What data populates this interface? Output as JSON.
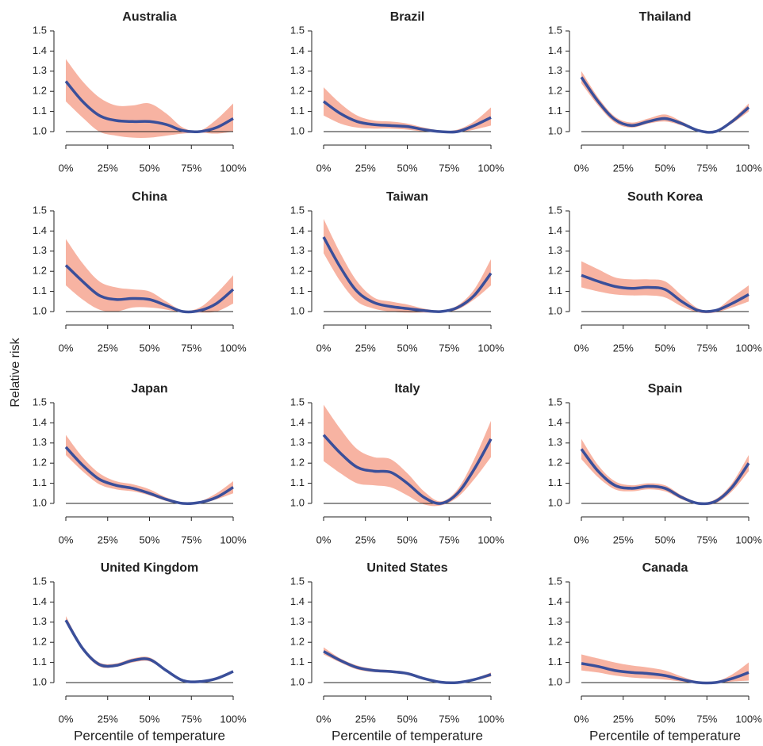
{
  "ylabel": "Relative risk",
  "chart_data": [
    {
      "type": "line",
      "title": "Australia",
      "x": [
        0,
        10,
        20,
        30,
        40,
        50,
        60,
        70,
        80,
        90,
        100
      ],
      "values": [
        1.25,
        1.15,
        1.08,
        1.055,
        1.05,
        1.05,
        1.035,
        1.005,
        1.0,
        1.02,
        1.065
      ],
      "lower": [
        1.15,
        1.07,
        1.0,
        0.98,
        0.97,
        0.97,
        0.98,
        0.99,
        0.995,
        0.99,
        1.0
      ],
      "upper": [
        1.36,
        1.25,
        1.17,
        1.13,
        1.13,
        1.14,
        1.09,
        1.02,
        1.005,
        1.06,
        1.14
      ],
      "color": "#3a4f9a",
      "band_color": "#f7b3a2",
      "xlim": [
        0,
        100
      ],
      "ylim": [
        1,
        1.5
      ],
      "xticks": [
        {
          "value": 0,
          "label": "0%"
        },
        {
          "value": 25,
          "label": "25%"
        },
        {
          "value": 50,
          "label": "50%"
        },
        {
          "value": 75,
          "label": "75%"
        },
        {
          "value": 100,
          "label": "100%"
        }
      ],
      "yticks": [
        {
          "value": 1,
          "label": "1.0"
        },
        1.1,
        1.2,
        1.3,
        1.4,
        1.5
      ]
    },
    {
      "type": "line",
      "title": "Brazil",
      "x": [
        0,
        10,
        20,
        30,
        40,
        50,
        60,
        70,
        80,
        90,
        100
      ],
      "values": [
        1.15,
        1.09,
        1.05,
        1.035,
        1.03,
        1.025,
        1.01,
        1.0,
        1.0,
        1.03,
        1.07
      ],
      "lower": [
        1.08,
        1.04,
        1.02,
        1.015,
        1.015,
        1.01,
        1.0,
        0.995,
        0.995,
        1.01,
        1.03
      ],
      "upper": [
        1.22,
        1.14,
        1.08,
        1.055,
        1.05,
        1.04,
        1.02,
        1.005,
        1.01,
        1.05,
        1.12
      ],
      "color": "#3a4f9a",
      "band_color": "#f7b3a2",
      "xlim": [
        0,
        100
      ],
      "ylim": [
        1,
        1.5
      ],
      "xticks": [
        {
          "value": 0,
          "label": "0%"
        },
        {
          "value": 25,
          "label": "25%"
        },
        {
          "value": 50,
          "label": "50%"
        },
        {
          "value": 75,
          "label": "75%"
        },
        {
          "value": 100,
          "label": "100%"
        }
      ],
      "yticks": [
        {
          "value": 1,
          "label": "1.0"
        },
        1.1,
        1.2,
        1.3,
        1.4,
        1.5
      ]
    },
    {
      "type": "line",
      "title": "Thailand",
      "x": [
        0,
        10,
        20,
        30,
        40,
        50,
        60,
        70,
        80,
        90,
        100
      ],
      "values": [
        1.27,
        1.15,
        1.06,
        1.03,
        1.05,
        1.065,
        1.04,
        1.005,
        1.0,
        1.05,
        1.12
      ],
      "lower": [
        1.24,
        1.13,
        1.045,
        1.02,
        1.04,
        1.05,
        1.03,
        1.0,
        0.995,
        1.04,
        1.1
      ],
      "upper": [
        1.3,
        1.17,
        1.075,
        1.045,
        1.065,
        1.085,
        1.05,
        1.01,
        1.005,
        1.06,
        1.14
      ],
      "color": "#3a4f9a",
      "band_color": "#f7b3a2",
      "xlim": [
        0,
        100
      ],
      "ylim": [
        1,
        1.5
      ],
      "xticks": [
        {
          "value": 0,
          "label": "0%"
        },
        {
          "value": 25,
          "label": "25%"
        },
        {
          "value": 50,
          "label": "50%"
        },
        {
          "value": 75,
          "label": "75%"
        },
        {
          "value": 100,
          "label": "100%"
        }
      ],
      "yticks": [
        {
          "value": 1,
          "label": "1.0"
        },
        1.1,
        1.2,
        1.3,
        1.4,
        1.5
      ]
    },
    {
      "type": "line",
      "title": "China",
      "x": [
        0,
        10,
        20,
        30,
        40,
        50,
        60,
        70,
        80,
        90,
        100
      ],
      "values": [
        1.23,
        1.15,
        1.08,
        1.06,
        1.065,
        1.06,
        1.03,
        1.0,
        1.005,
        1.04,
        1.11
      ],
      "lower": [
        1.13,
        1.06,
        1.01,
        1.0,
        1.02,
        1.02,
        1.01,
        0.995,
        0.995,
        1.0,
        1.04
      ],
      "upper": [
        1.36,
        1.24,
        1.15,
        1.12,
        1.11,
        1.1,
        1.05,
        1.005,
        1.02,
        1.09,
        1.18
      ],
      "color": "#3a4f9a",
      "band_color": "#f7b3a2",
      "xlim": [
        0,
        100
      ],
      "ylim": [
        1,
        1.5
      ],
      "xticks": [
        {
          "value": 0,
          "label": "0%"
        },
        {
          "value": 25,
          "label": "25%"
        },
        {
          "value": 50,
          "label": "50%"
        },
        {
          "value": 75,
          "label": "75%"
        },
        {
          "value": 100,
          "label": "100%"
        }
      ],
      "yticks": [
        {
          "value": 1,
          "label": "1.0"
        },
        1.1,
        1.2,
        1.3,
        1.4,
        1.5
      ]
    },
    {
      "type": "line",
      "title": "Taiwan",
      "x": [
        0,
        10,
        20,
        30,
        40,
        50,
        60,
        70,
        80,
        90,
        100
      ],
      "values": [
        1.37,
        1.22,
        1.1,
        1.045,
        1.025,
        1.015,
        1.005,
        1.0,
        1.02,
        1.08,
        1.19
      ],
      "lower": [
        1.29,
        1.15,
        1.05,
        1.015,
        1.0,
        0.995,
        0.995,
        0.995,
        1.01,
        1.06,
        1.13
      ],
      "upper": [
        1.46,
        1.29,
        1.15,
        1.07,
        1.05,
        1.035,
        1.015,
        1.005,
        1.03,
        1.11,
        1.26
      ],
      "color": "#3a4f9a",
      "band_color": "#f7b3a2",
      "xlim": [
        0,
        100
      ],
      "ylim": [
        1,
        1.5
      ],
      "xticks": [
        {
          "value": 0,
          "label": "0%"
        },
        {
          "value": 25,
          "label": "25%"
        },
        {
          "value": 50,
          "label": "50%"
        },
        {
          "value": 75,
          "label": "75%"
        },
        {
          "value": 100,
          "label": "100%"
        }
      ],
      "yticks": [
        {
          "value": 1,
          "label": "1.0"
        },
        1.1,
        1.2,
        1.3,
        1.4,
        1.5
      ]
    },
    {
      "type": "line",
      "title": "South Korea",
      "x": [
        0,
        10,
        20,
        30,
        40,
        50,
        60,
        70,
        80,
        90,
        100
      ],
      "values": [
        1.18,
        1.15,
        1.125,
        1.115,
        1.12,
        1.11,
        1.05,
        1.005,
        1.005,
        1.04,
        1.085
      ],
      "lower": [
        1.12,
        1.1,
        1.085,
        1.08,
        1.08,
        1.07,
        1.025,
        0.995,
        0.995,
        1.02,
        1.05
      ],
      "upper": [
        1.25,
        1.21,
        1.17,
        1.16,
        1.16,
        1.15,
        1.08,
        1.015,
        1.01,
        1.07,
        1.13
      ],
      "color": "#3a4f9a",
      "band_color": "#f7b3a2",
      "xlim": [
        0,
        100
      ],
      "ylim": [
        1,
        1.5
      ],
      "xticks": [
        {
          "value": 0,
          "label": "0%"
        },
        {
          "value": 25,
          "label": "25%"
        },
        {
          "value": 50,
          "label": "50%"
        },
        {
          "value": 75,
          "label": "75%"
        },
        {
          "value": 100,
          "label": "100%"
        }
      ],
      "yticks": [
        {
          "value": 1,
          "label": "1.0"
        },
        1.1,
        1.2,
        1.3,
        1.4,
        1.5
      ]
    },
    {
      "type": "line",
      "title": "Japan",
      "x": [
        0,
        10,
        20,
        30,
        40,
        50,
        60,
        70,
        80,
        90,
        100
      ],
      "values": [
        1.28,
        1.19,
        1.12,
        1.09,
        1.075,
        1.05,
        1.02,
        1.0,
        1.005,
        1.03,
        1.08
      ],
      "lower": [
        1.24,
        1.16,
        1.095,
        1.07,
        1.06,
        1.04,
        1.012,
        0.995,
        0.998,
        1.02,
        1.05
      ],
      "upper": [
        1.34,
        1.23,
        1.15,
        1.11,
        1.095,
        1.07,
        1.03,
        1.005,
        1.01,
        1.05,
        1.11
      ],
      "color": "#3a4f9a",
      "band_color": "#f7b3a2",
      "xlim": [
        0,
        100
      ],
      "ylim": [
        1,
        1.5
      ],
      "xticks": [
        {
          "value": 0,
          "label": "0%"
        },
        {
          "value": 25,
          "label": "25%"
        },
        {
          "value": 50,
          "label": "50%"
        },
        {
          "value": 75,
          "label": "75%"
        },
        {
          "value": 100,
          "label": "100%"
        }
      ],
      "yticks": [
        {
          "value": 1,
          "label": "1.0"
        },
        1.1,
        1.2,
        1.3,
        1.4,
        1.5
      ]
    },
    {
      "type": "line",
      "title": "Italy",
      "x": [
        0,
        10,
        20,
        30,
        40,
        50,
        60,
        70,
        80,
        90,
        100
      ],
      "values": [
        1.34,
        1.25,
        1.18,
        1.16,
        1.155,
        1.1,
        1.03,
        1.0,
        1.05,
        1.17,
        1.32
      ],
      "lower": [
        1.21,
        1.15,
        1.1,
        1.09,
        1.08,
        1.04,
        0.995,
        0.99,
        1.03,
        1.12,
        1.23
      ],
      "upper": [
        1.49,
        1.37,
        1.27,
        1.23,
        1.22,
        1.15,
        1.06,
        1.01,
        1.07,
        1.22,
        1.41
      ],
      "color": "#3a4f9a",
      "band_color": "#f7b3a2",
      "xlim": [
        0,
        100
      ],
      "ylim": [
        1,
        1.5
      ],
      "xticks": [
        {
          "value": 0,
          "label": "0%"
        },
        {
          "value": 25,
          "label": "25%"
        },
        {
          "value": 50,
          "label": "50%"
        },
        {
          "value": 75,
          "label": "75%"
        },
        {
          "value": 100,
          "label": "100%"
        }
      ],
      "yticks": [
        {
          "value": 1,
          "label": "1.0"
        },
        1.1,
        1.2,
        1.3,
        1.4,
        1.5
      ]
    },
    {
      "type": "line",
      "title": "Spain",
      "x": [
        0,
        10,
        20,
        30,
        40,
        50,
        60,
        70,
        80,
        90,
        100
      ],
      "values": [
        1.27,
        1.16,
        1.09,
        1.075,
        1.085,
        1.075,
        1.03,
        1.0,
        1.01,
        1.08,
        1.2
      ],
      "lower": [
        1.22,
        1.13,
        1.07,
        1.06,
        1.07,
        1.06,
        1.02,
        0.995,
        1.0,
        1.06,
        1.16
      ],
      "upper": [
        1.32,
        1.19,
        1.11,
        1.09,
        1.1,
        1.09,
        1.04,
        1.005,
        1.02,
        1.1,
        1.24
      ],
      "color": "#3a4f9a",
      "band_color": "#f7b3a2",
      "xlim": [
        0,
        100
      ],
      "ylim": [
        1,
        1.5
      ],
      "xticks": [
        {
          "value": 0,
          "label": "0%"
        },
        {
          "value": 25,
          "label": "25%"
        },
        {
          "value": 50,
          "label": "50%"
        },
        {
          "value": 75,
          "label": "75%"
        },
        {
          "value": 100,
          "label": "100%"
        }
      ],
      "yticks": [
        {
          "value": 1,
          "label": "1.0"
        },
        1.1,
        1.2,
        1.3,
        1.4,
        1.5
      ]
    },
    {
      "type": "line",
      "title": "United Kingdom",
      "xlabel": "Percentile of temperature",
      "x": [
        0,
        10,
        20,
        30,
        40,
        50,
        60,
        70,
        80,
        90,
        100
      ],
      "values": [
        1.31,
        1.17,
        1.09,
        1.085,
        1.11,
        1.115,
        1.06,
        1.01,
        1.005,
        1.02,
        1.055
      ],
      "lower": [
        1.3,
        1.16,
        1.08,
        1.078,
        1.1,
        1.105,
        1.055,
        1.005,
        1.0,
        1.015,
        1.05
      ],
      "upper": [
        1.33,
        1.18,
        1.1,
        1.095,
        1.12,
        1.125,
        1.065,
        1.015,
        1.01,
        1.025,
        1.06
      ],
      "color": "#3a4f9a",
      "band_color": "#f7b3a2",
      "xlim": [
        0,
        100
      ],
      "ylim": [
        1,
        1.5
      ],
      "xticks": [
        {
          "value": 0,
          "label": "0%"
        },
        {
          "value": 25,
          "label": "25%"
        },
        {
          "value": 50,
          "label": "50%"
        },
        {
          "value": 75,
          "label": "75%"
        },
        {
          "value": 100,
          "label": "100%"
        }
      ],
      "yticks": [
        {
          "value": 1,
          "label": "1.0"
        },
        1.1,
        1.2,
        1.3,
        1.4,
        1.5
      ]
    },
    {
      "type": "line",
      "title": "United States",
      "xlabel": "Percentile of temperature",
      "x": [
        0,
        10,
        20,
        30,
        40,
        50,
        60,
        70,
        80,
        90,
        100
      ],
      "values": [
        1.155,
        1.11,
        1.075,
        1.06,
        1.055,
        1.045,
        1.02,
        1.002,
        1.0,
        1.015,
        1.04
      ],
      "lower": [
        1.14,
        1.1,
        1.065,
        1.052,
        1.048,
        1.038,
        1.014,
        0.998,
        0.996,
        1.01,
        1.03
      ],
      "upper": [
        1.175,
        1.12,
        1.085,
        1.068,
        1.062,
        1.052,
        1.026,
        1.006,
        1.004,
        1.02,
        1.05
      ],
      "color": "#3a4f9a",
      "band_color": "#f7b3a2",
      "xlim": [
        0,
        100
      ],
      "ylim": [
        1,
        1.5
      ],
      "xticks": [
        {
          "value": 0,
          "label": "0%"
        },
        {
          "value": 25,
          "label": "25%"
        },
        {
          "value": 50,
          "label": "50%"
        },
        {
          "value": 75,
          "label": "75%"
        },
        {
          "value": 100,
          "label": "100%"
        }
      ],
      "yticks": [
        {
          "value": 1,
          "label": "1.0"
        },
        1.1,
        1.2,
        1.3,
        1.4,
        1.5
      ]
    },
    {
      "type": "line",
      "title": "Canada",
      "xlabel": "Percentile of temperature",
      "x": [
        0,
        10,
        20,
        30,
        40,
        50,
        60,
        70,
        80,
        90,
        100
      ],
      "values": [
        1.095,
        1.08,
        1.06,
        1.05,
        1.045,
        1.035,
        1.015,
        1.0,
        1.0,
        1.02,
        1.05
      ],
      "lower": [
        1.06,
        1.05,
        1.035,
        1.025,
        1.02,
        1.015,
        1.005,
        0.995,
        0.995,
        1.005,
        1.01
      ],
      "upper": [
        1.14,
        1.12,
        1.1,
        1.085,
        1.075,
        1.06,
        1.03,
        1.005,
        1.005,
        1.04,
        1.1
      ],
      "color": "#3a4f9a",
      "band_color": "#f7b3a2",
      "xlim": [
        0,
        100
      ],
      "ylim": [
        1,
        1.5
      ],
      "xticks": [
        {
          "value": 0,
          "label": "0%"
        },
        {
          "value": 25,
          "label": "25%"
        },
        {
          "value": 50,
          "label": "50%"
        },
        {
          "value": 75,
          "label": "75%"
        },
        {
          "value": 100,
          "label": "100%"
        }
      ],
      "yticks": [
        {
          "value": 1,
          "label": "1.0"
        },
        1.1,
        1.2,
        1.3,
        1.4,
        1.5
      ]
    }
  ]
}
